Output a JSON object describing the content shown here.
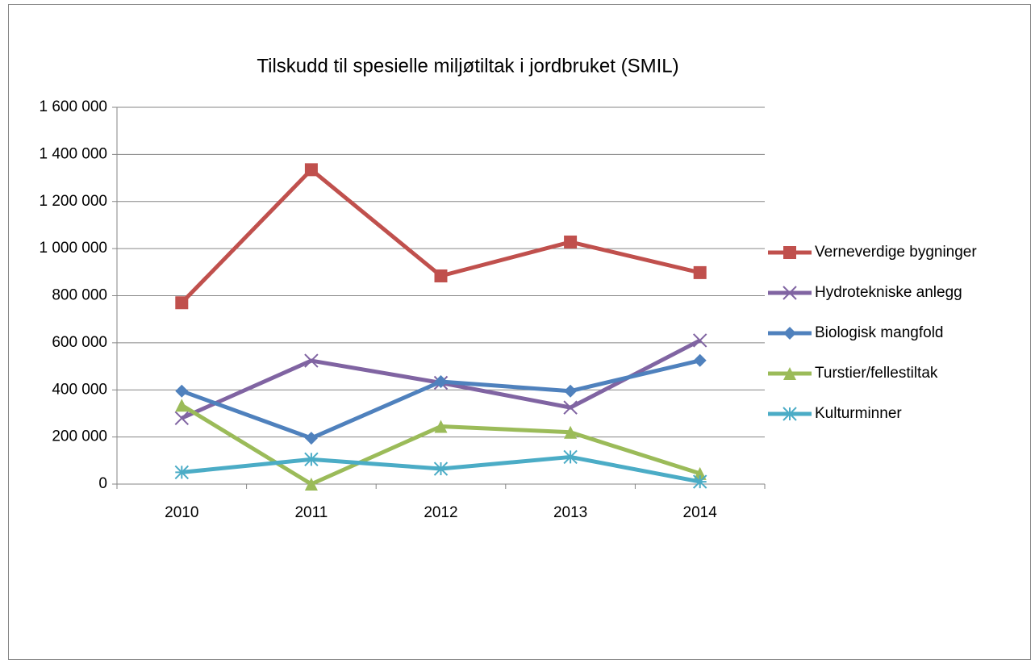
{
  "chart_data": {
    "type": "line",
    "title": "Tilskudd til spesielle miljøtiltak i jordbruket (SMIL)",
    "categories": [
      "2010",
      "2011",
      "2012",
      "2013",
      "2014"
    ],
    "series": [
      {
        "name": "Verneverdige bygninger",
        "color": "#c0504d",
        "marker": "square",
        "values": [
          770000,
          1335000,
          884000,
          1028000,
          898000
        ]
      },
      {
        "name": "Hydrotekniske anlegg",
        "color": "#8064a2",
        "marker": "x",
        "values": [
          280000,
          524000,
          430000,
          325000,
          610000
        ]
      },
      {
        "name": "Biologisk mangfold",
        "color": "#4f81bd",
        "marker": "diamond",
        "values": [
          395000,
          195000,
          435000,
          395000,
          525000
        ]
      },
      {
        "name": "Turstier/fellestiltak",
        "color": "#9bbb59",
        "marker": "triangle",
        "values": [
          335000,
          0,
          245000,
          220000,
          45000
        ]
      },
      {
        "name": "Kulturminner",
        "color": "#4bacc6",
        "marker": "star",
        "values": [
          50000,
          105000,
          65000,
          115000,
          10000
        ]
      }
    ],
    "ylim": [
      0,
      1600000
    ],
    "yticks": [
      0,
      {
        "value": 200000,
        "label": "200 000"
      },
      {
        "value": 400000,
        "label": "400 000"
      },
      {
        "value": 600000,
        "label": "600 000"
      },
      {
        "value": 800000,
        "label": "800 000"
      },
      {
        "value": 1000000,
        "label": "1 000 000"
      },
      {
        "value": 1200000,
        "label": "1 200 000"
      },
      {
        "value": 1400000,
        "label": "1 400 000"
      },
      {
        "value": 1600000,
        "label": "1 600 000"
      }
    ],
    "grid": true,
    "legend": "right"
  }
}
